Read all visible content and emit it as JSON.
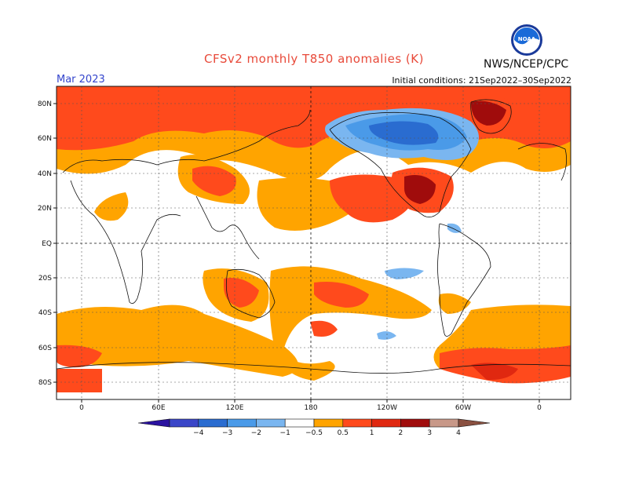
{
  "title": "CFSv2 monthly T850 anomalies (K)",
  "organization": "NWS/NCEP/CPC",
  "valid_month": "Mar 2023",
  "initial_conditions": "Initial conditions: 21Sep2022–30Sep2022",
  "logo": {
    "text": "NOAA",
    "icon": "noaa-logo-icon"
  },
  "map": {
    "lat_labels": [
      "80N",
      "60N",
      "40N",
      "20N",
      "EQ",
      "20S",
      "40S",
      "60S",
      "80S"
    ],
    "lon_labels": [
      "0",
      "60E",
      "120E",
      "180",
      "120W",
      "60W",
      "0"
    ]
  },
  "colorbar": {
    "tick_labels": [
      "−4",
      "−3",
      "−2",
      "−1",
      "−0.5",
      "0.5",
      "1",
      "2",
      "3",
      "4"
    ],
    "colors": [
      "#2a12a0",
      "#3a46c8",
      "#2a6cd0",
      "#4a9ae8",
      "#7ab6f0",
      "#ffffff",
      "#ffa400",
      "#ff4a1c",
      "#e02810",
      "#a00c0c",
      "#c89888",
      "#8a5040"
    ]
  }
}
